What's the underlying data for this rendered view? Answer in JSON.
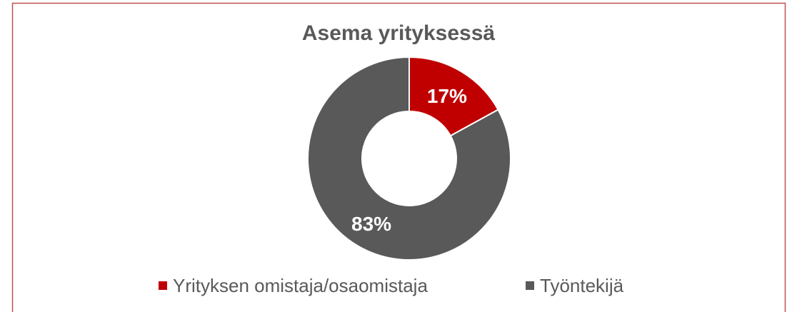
{
  "chart_data": {
    "type": "donut",
    "title": "Asema yrityksessä",
    "categories": [
      "Yrityksen omistaja/osaomistaja",
      "Työntekijä"
    ],
    "values": [
      17,
      83
    ],
    "value_labels": [
      "17%",
      "83%"
    ],
    "colors": [
      "#c00000",
      "#595959"
    ],
    "legend": "bottom"
  }
}
